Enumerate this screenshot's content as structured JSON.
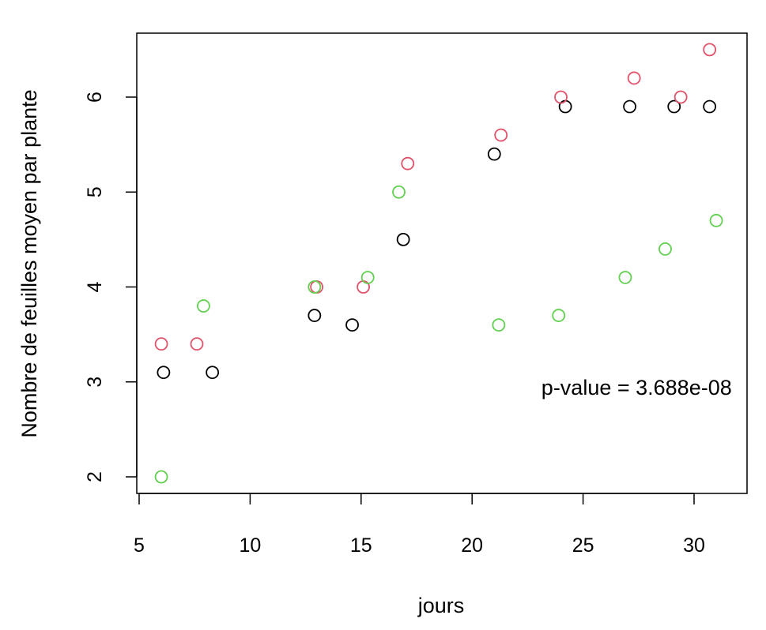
{
  "chart_data": {
    "type": "scatter",
    "title": "",
    "xlabel": "jours",
    "ylabel": "Nombre de feuilles moyen par plante",
    "xlim": [
      5,
      32
    ],
    "ylim": [
      1.85,
      6.7
    ],
    "x_ticks": [
      5,
      10,
      15,
      20,
      25,
      30
    ],
    "y_ticks": [
      2,
      3,
      4,
      5,
      6
    ],
    "grid": false,
    "legend": null,
    "annotation": {
      "text": "p-value = 3.688e-08",
      "x": 31.7,
      "y": 2.95
    },
    "series": [
      {
        "color": "#000000",
        "points": [
          {
            "x": 6.1,
            "y": 3.1
          },
          {
            "x": 8.3,
            "y": 3.1
          },
          {
            "x": 12.9,
            "y": 3.7
          },
          {
            "x": 14.6,
            "y": 3.6
          },
          {
            "x": 16.9,
            "y": 4.5
          },
          {
            "x": 21.0,
            "y": 5.4
          },
          {
            "x": 24.2,
            "y": 5.9
          },
          {
            "x": 27.1,
            "y": 5.9
          },
          {
            "x": 29.1,
            "y": 5.9
          },
          {
            "x": 30.7,
            "y": 5.9
          }
        ]
      },
      {
        "color": "#DF536B",
        "points": [
          {
            "x": 6.0,
            "y": 3.4
          },
          {
            "x": 7.6,
            "y": 3.4
          },
          {
            "x": 13.0,
            "y": 4.0
          },
          {
            "x": 15.1,
            "y": 4.0
          },
          {
            "x": 17.1,
            "y": 5.3
          },
          {
            "x": 21.3,
            "y": 5.6
          },
          {
            "x": 24.0,
            "y": 6.0
          },
          {
            "x": 27.3,
            "y": 6.2
          },
          {
            "x": 29.4,
            "y": 6.0
          },
          {
            "x": 30.7,
            "y": 6.5
          }
        ]
      },
      {
        "color": "#61D04F",
        "points": [
          {
            "x": 6.0,
            "y": 2.0
          },
          {
            "x": 7.9,
            "y": 3.8
          },
          {
            "x": 12.9,
            "y": 4.0
          },
          {
            "x": 15.3,
            "y": 4.1
          },
          {
            "x": 16.7,
            "y": 5.0
          },
          {
            "x": 21.2,
            "y": 3.6
          },
          {
            "x": 23.9,
            "y": 3.7
          },
          {
            "x": 26.9,
            "y": 4.1
          },
          {
            "x": 28.7,
            "y": 4.4
          },
          {
            "x": 31.0,
            "y": 4.7
          }
        ]
      }
    ]
  }
}
